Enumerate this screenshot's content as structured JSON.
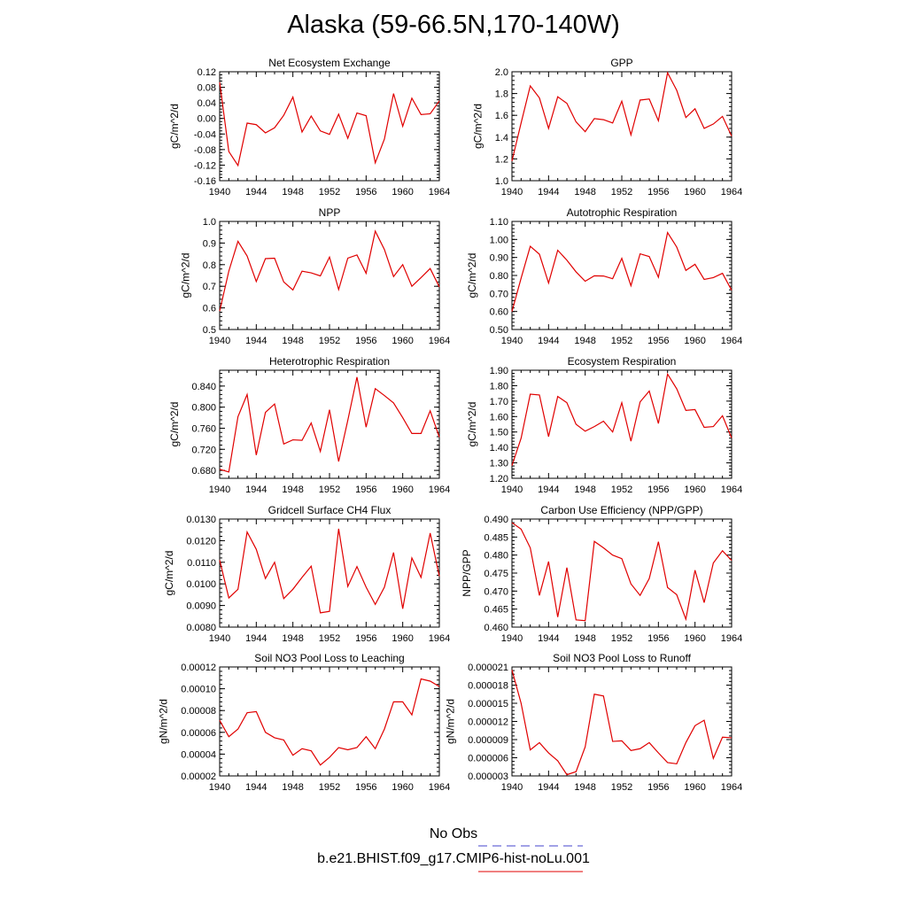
{
  "title": "Alaska (59-66.5N,170-140W)",
  "legend": {
    "entries": [
      {
        "label": "No Obs",
        "color": "#4444cc",
        "dash": true
      },
      {
        "label": "b.e21.BHIST.f09_g17.CMIP6-hist-noLu.001",
        "color": "#e00000",
        "dash": false
      }
    ]
  },
  "chart_data": [
    {
      "type": "line",
      "title": "Net Ecosystem Exchange",
      "ylabel": "gC/m^2/d",
      "xlim": [
        1940,
        1964
      ],
      "ylim": [
        -0.16,
        0.12
      ],
      "xticks": [
        1940,
        1944,
        1948,
        1952,
        1956,
        1960,
        1964
      ],
      "yticks": [
        "-0.16",
        "-0.12",
        "-0.08",
        "-0.04",
        "0.00",
        "0.04",
        "0.08",
        "0.12"
      ],
      "x": [
        1940,
        1941,
        1942,
        1943,
        1944,
        1945,
        1946,
        1947,
        1948,
        1949,
        1950,
        1951,
        1952,
        1953,
        1954,
        1955,
        1956,
        1957,
        1958,
        1959,
        1960,
        1961,
        1962,
        1963,
        1964
      ],
      "series": [
        {
          "name": "b.e21.BHIST.f09_g17.CMIP6-hist-noLu.001",
          "color": "#e00000",
          "values": [
            0.093,
            -0.085,
            -0.121,
            -0.012,
            -0.016,
            -0.037,
            -0.024,
            0.008,
            0.055,
            -0.035,
            0.006,
            -0.032,
            -0.041,
            0.011,
            -0.051,
            0.014,
            0.007,
            -0.114,
            -0.053,
            0.064,
            -0.02,
            0.052,
            0.01,
            0.012,
            0.045
          ]
        }
      ]
    },
    {
      "type": "line",
      "title": "GPP",
      "ylabel": "gC/m^2/d",
      "xlim": [
        1940,
        1964
      ],
      "ylim": [
        1.0,
        2.0
      ],
      "xticks": [
        1940,
        1944,
        1948,
        1952,
        1956,
        1960,
        1964
      ],
      "yticks": [
        "1.0",
        "1.2",
        "1.4",
        "1.6",
        "1.8",
        "2.0"
      ],
      "x": [
        1940,
        1941,
        1942,
        1943,
        1944,
        1945,
        1946,
        1947,
        1948,
        1949,
        1950,
        1951,
        1952,
        1953,
        1954,
        1955,
        1956,
        1957,
        1958,
        1959,
        1960,
        1961,
        1962,
        1963,
        1964
      ],
      "series": [
        {
          "name": "b.e21.BHIST.f09_g17.CMIP6-hist-noLu.001",
          "color": "#e00000",
          "values": [
            1.18,
            1.53,
            1.87,
            1.76,
            1.48,
            1.77,
            1.71,
            1.54,
            1.45,
            1.57,
            1.56,
            1.53,
            1.73,
            1.42,
            1.74,
            1.75,
            1.55,
            1.99,
            1.83,
            1.58,
            1.66,
            1.48,
            1.52,
            1.59,
            1.41
          ]
        }
      ]
    },
    {
      "type": "line",
      "title": "NPP",
      "ylabel": "gC/m^2/d",
      "xlim": [
        1940,
        1964
      ],
      "ylim": [
        0.5,
        1.0
      ],
      "xticks": [
        1940,
        1944,
        1948,
        1952,
        1956,
        1960,
        1964
      ],
      "yticks": [
        "0.5",
        "0.6",
        "0.7",
        "0.8",
        "0.9",
        "1.0"
      ],
      "x": [
        1940,
        1941,
        1942,
        1943,
        1944,
        1945,
        1946,
        1947,
        1948,
        1949,
        1950,
        1951,
        1952,
        1953,
        1954,
        1955,
        1956,
        1957,
        1958,
        1959,
        1960,
        1961,
        1962,
        1963,
        1964
      ],
      "series": [
        {
          "name": "b.e21.BHIST.f09_g17.CMIP6-hist-noLu.001",
          "color": "#e00000",
          "values": [
            0.585,
            0.77,
            0.908,
            0.84,
            0.722,
            0.828,
            0.83,
            0.72,
            0.683,
            0.77,
            0.762,
            0.748,
            0.835,
            0.685,
            0.83,
            0.845,
            0.76,
            0.955,
            0.87,
            0.745,
            0.8,
            0.7,
            0.74,
            0.782,
            0.697
          ]
        }
      ]
    },
    {
      "type": "line",
      "title": "Autotrophic Respiration",
      "ylabel": "gC/m^2/d",
      "xlim": [
        1940,
        1964
      ],
      "ylim": [
        0.5,
        1.1
      ],
      "xticks": [
        1940,
        1944,
        1948,
        1952,
        1956,
        1960,
        1964
      ],
      "yticks": [
        "0.50",
        "0.60",
        "0.70",
        "0.80",
        "0.90",
        "1.00",
        "1.10"
      ],
      "x": [
        1940,
        1941,
        1942,
        1943,
        1944,
        1945,
        1946,
        1947,
        1948,
        1949,
        1950,
        1951,
        1952,
        1953,
        1954,
        1955,
        1956,
        1957,
        1958,
        1959,
        1960,
        1961,
        1962,
        1963,
        1964
      ],
      "series": [
        {
          "name": "b.e21.BHIST.f09_g17.CMIP6-hist-noLu.001",
          "color": "#e00000",
          "values": [
            0.6,
            0.785,
            0.962,
            0.918,
            0.758,
            0.94,
            0.885,
            0.82,
            0.768,
            0.798,
            0.797,
            0.782,
            0.895,
            0.743,
            0.92,
            0.905,
            0.79,
            1.038,
            0.958,
            0.828,
            0.862,
            0.778,
            0.788,
            0.812,
            0.718
          ]
        }
      ]
    },
    {
      "type": "line",
      "title": "Heterotrophic Respiration",
      "ylabel": "gC/m^2/d",
      "xlim": [
        1940,
        1964
      ],
      "ylim": [
        0.665,
        0.87
      ],
      "xticks": [
        1940,
        1944,
        1948,
        1952,
        1956,
        1960,
        1964
      ],
      "yticks": [
        "0.680",
        "0.720",
        "0.760",
        "0.800",
        "0.840"
      ],
      "x": [
        1940,
        1941,
        1942,
        1943,
        1944,
        1945,
        1946,
        1947,
        1948,
        1949,
        1950,
        1951,
        1952,
        1953,
        1954,
        1955,
        1956,
        1957,
        1958,
        1959,
        1960,
        1961,
        1962,
        1963,
        1964
      ],
      "series": [
        {
          "name": "b.e21.BHIST.f09_g17.CMIP6-hist-noLu.001",
          "color": "#e00000",
          "values": [
            0.682,
            0.677,
            0.782,
            0.824,
            0.709,
            0.79,
            0.806,
            0.73,
            0.738,
            0.737,
            0.77,
            0.716,
            0.795,
            0.697,
            0.775,
            0.857,
            0.762,
            0.835,
            0.822,
            0.808,
            0.78,
            0.75,
            0.75,
            0.793,
            0.743
          ]
        }
      ]
    },
    {
      "type": "line",
      "title": "Ecosystem Respiration",
      "ylabel": "gC/m^2/d",
      "xlim": [
        1940,
        1964
      ],
      "ylim": [
        1.2,
        1.9
      ],
      "xticks": [
        1940,
        1944,
        1948,
        1952,
        1956,
        1960,
        1964
      ],
      "yticks": [
        "1.20",
        "1.30",
        "1.40",
        "1.50",
        "1.60",
        "1.70",
        "1.80",
        "1.90"
      ],
      "x": [
        1940,
        1941,
        1942,
        1943,
        1944,
        1945,
        1946,
        1947,
        1948,
        1949,
        1950,
        1951,
        1952,
        1953,
        1954,
        1955,
        1956,
        1957,
        1958,
        1959,
        1960,
        1961,
        1962,
        1963,
        1964
      ],
      "series": [
        {
          "name": "b.e21.BHIST.f09_g17.CMIP6-hist-noLu.001",
          "color": "#e00000",
          "values": [
            1.282,
            1.46,
            1.745,
            1.74,
            1.47,
            1.73,
            1.69,
            1.55,
            1.505,
            1.535,
            1.57,
            1.5,
            1.69,
            1.44,
            1.695,
            1.765,
            1.555,
            1.875,
            1.78,
            1.64,
            1.645,
            1.53,
            1.535,
            1.605,
            1.462
          ]
        }
      ]
    },
    {
      "type": "line",
      "title": "Gridcell Surface CH4 Flux",
      "ylabel": "gC/m^2/d",
      "xlim": [
        1940,
        1964
      ],
      "ylim": [
        0.008,
        0.013
      ],
      "xticks": [
        1940,
        1944,
        1948,
        1952,
        1956,
        1960,
        1964
      ],
      "yticks": [
        "0.0080",
        "0.0090",
        "0.0100",
        "0.0110",
        "0.0120",
        "0.0130"
      ],
      "x": [
        1940,
        1941,
        1942,
        1943,
        1944,
        1945,
        1946,
        1947,
        1948,
        1949,
        1950,
        1951,
        1952,
        1953,
        1954,
        1955,
        1956,
        1957,
        1958,
        1959,
        1960,
        1961,
        1962,
        1963,
        1964
      ],
      "series": [
        {
          "name": "b.e21.BHIST.f09_g17.CMIP6-hist-noLu.001",
          "color": "#e00000",
          "values": [
            0.0111,
            0.00935,
            0.00975,
            0.0124,
            0.0116,
            0.01025,
            0.011,
            0.00932,
            0.00975,
            0.0103,
            0.01082,
            0.00866,
            0.00873,
            0.01255,
            0.00988,
            0.0108,
            0.00985,
            0.00905,
            0.00985,
            0.01145,
            0.00885,
            0.0112,
            0.0103,
            0.01235,
            0.01035
          ]
        }
      ]
    },
    {
      "type": "line",
      "title": "Carbon Use Efficiency (NPP/GPP)",
      "ylabel": "NPP/GPP",
      "xlim": [
        1940,
        1964
      ],
      "ylim": [
        0.46,
        0.49
      ],
      "xticks": [
        1940,
        1944,
        1948,
        1952,
        1956,
        1960,
        1964
      ],
      "yticks": [
        "0.460",
        "0.465",
        "0.470",
        "0.475",
        "0.480",
        "0.485",
        "0.490"
      ],
      "x": [
        1940,
        1941,
        1942,
        1943,
        1944,
        1945,
        1946,
        1947,
        1948,
        1949,
        1950,
        1951,
        1952,
        1953,
        1954,
        1955,
        1956,
        1957,
        1958,
        1959,
        1960,
        1961,
        1962,
        1963,
        1964
      ],
      "series": [
        {
          "name": "b.e21.BHIST.f09_g17.CMIP6-hist-noLu.001",
          "color": "#e00000",
          "values": [
            0.489,
            0.4872,
            0.482,
            0.4688,
            0.4782,
            0.4628,
            0.4765,
            0.462,
            0.4618,
            0.4838,
            0.482,
            0.48,
            0.479,
            0.472,
            0.4688,
            0.4735,
            0.4837,
            0.471,
            0.469,
            0.4622,
            0.4758,
            0.4668,
            0.4778,
            0.4812,
            0.4785
          ]
        }
      ]
    },
    {
      "type": "line",
      "title": "Soil NO3 Pool Loss to Leaching",
      "ylabel": "gN/m^2/d",
      "xlim": [
        1940,
        1964
      ],
      "ylim": [
        2e-05,
        0.00012
      ],
      "xticks": [
        1940,
        1944,
        1948,
        1952,
        1956,
        1960,
        1964
      ],
      "yticks": [
        "0.00002",
        "0.00004",
        "0.00006",
        "0.00008",
        "0.00010",
        "0.00012"
      ],
      "x": [
        1940,
        1941,
        1942,
        1943,
        1944,
        1945,
        1946,
        1947,
        1948,
        1949,
        1950,
        1951,
        1952,
        1953,
        1954,
        1955,
        1956,
        1957,
        1958,
        1959,
        1960,
        1961,
        1962,
        1963,
        1964
      ],
      "series": [
        {
          "name": "b.e21.BHIST.f09_g17.CMIP6-hist-noLu.001",
          "color": "#e00000",
          "values": [
            7.1e-05,
            5.6e-05,
            6.3e-05,
            7.8e-05,
            7.9e-05,
            6e-05,
            5.5e-05,
            5.3e-05,
            3.9e-05,
            4.5e-05,
            4.3e-05,
            3e-05,
            3.7e-05,
            4.6e-05,
            4.4e-05,
            4.6e-05,
            5.6e-05,
            4.5e-05,
            6.3e-05,
            8.8e-05,
            8.8e-05,
            7.6e-05,
            0.000109,
            0.000107,
            0.000102
          ]
        }
      ]
    },
    {
      "type": "line",
      "title": "Soil NO3 Pool Loss to Runoff",
      "ylabel": "gN/m^2/d",
      "xlim": [
        1940,
        1964
      ],
      "ylim": [
        3e-06,
        2.1e-05
      ],
      "xticks": [
        1940,
        1944,
        1948,
        1952,
        1956,
        1960,
        1964
      ],
      "yticks": [
        "0.000003",
        "0.000006",
        "0.000009",
        "0.000012",
        "0.000015",
        "0.000018",
        "0.000021"
      ],
      "x": [
        1940,
        1941,
        1942,
        1943,
        1944,
        1945,
        1946,
        1947,
        1948,
        1949,
        1950,
        1951,
        1952,
        1953,
        1954,
        1955,
        1956,
        1957,
        1958,
        1959,
        1960,
        1961,
        1962,
        1963,
        1964
      ],
      "series": [
        {
          "name": "b.e21.BHIST.f09_g17.CMIP6-hist-noLu.001",
          "color": "#e00000",
          "values": [
            2.05e-05,
            1.5e-05,
            7.3e-06,
            8.5e-06,
            6.8e-06,
            5.5e-06,
            3.2e-06,
            3.7e-06,
            7.8e-06,
            1.65e-05,
            1.62e-05,
            8.7e-06,
            8.8e-06,
            7.2e-06,
            7.5e-06,
            8.5e-06,
            6.8e-06,
            5.2e-06,
            5e-06,
            8.5e-06,
            1.13e-05,
            1.22e-05,
            5.9e-06,
            9.4e-06,
            9.3e-06
          ]
        }
      ]
    }
  ]
}
